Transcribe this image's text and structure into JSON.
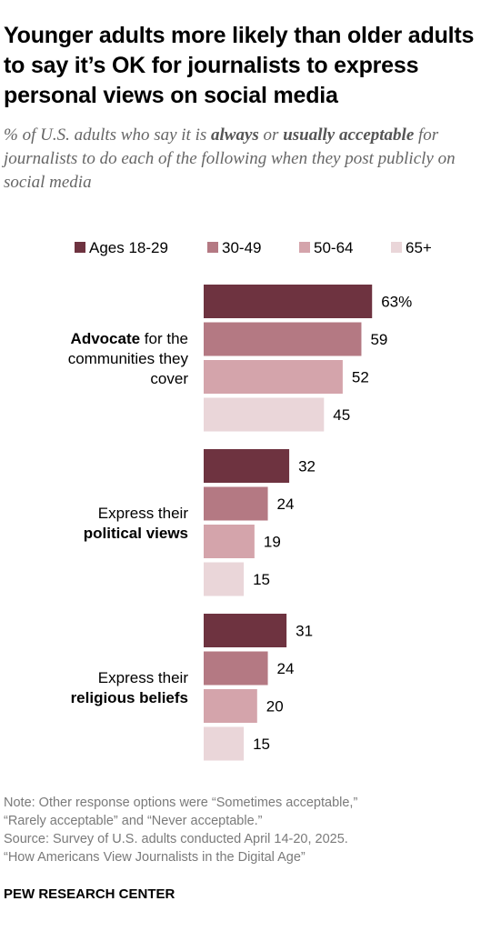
{
  "title": "Younger adults more likely than older adults to say it’s OK for journalists to express personal views on social media",
  "subtitle": {
    "part1": "% of U.S. adults who say it is ",
    "bold1": "always",
    "part2": " or ",
    "bold2": "usually acceptable",
    "part3": " for journalists to do each of the following when they post publicly on social media"
  },
  "notes": [
    "Note: Other response options were “Sometimes acceptable,”",
    "“Rarely acceptable” and “Never acceptable.”",
    "Source: Survey of U.S. adults conducted April 14-20, 2025.",
    "“How Americans View Journalists in the Digital Age”"
  ],
  "footer": "PEW RESEARCH CENTER",
  "chart_data": {
    "type": "bar",
    "orientation": "horizontal",
    "legend_position": "top",
    "xlim": [
      0,
      100
    ],
    "colors": [
      "#6e3340",
      "#b47983",
      "#d4a4ab",
      "#ead6d9"
    ],
    "series": [
      {
        "name": "Ages 18-29",
        "values": [
          63,
          32,
          31
        ]
      },
      {
        "name": "30-49",
        "values": [
          59,
          24,
          24
        ]
      },
      {
        "name": "50-64",
        "values": [
          52,
          19,
          20
        ]
      },
      {
        "name": "65+",
        "values": [
          45,
          15,
          15
        ]
      }
    ],
    "categories": [
      {
        "lines": [
          [
            {
              "text": "Advocate",
              "bold": true
            },
            {
              "text": " for the",
              "bold": false
            }
          ],
          [
            {
              "text": "communities they",
              "bold": false
            }
          ],
          [
            {
              "text": "cover",
              "bold": false
            }
          ]
        ]
      },
      {
        "lines": [
          [
            {
              "text": "Express their",
              "bold": false
            }
          ],
          [
            {
              "text": "political views",
              "bold": true
            }
          ]
        ]
      },
      {
        "lines": [
          [
            {
              "text": "Express their",
              "bold": false
            }
          ],
          [
            {
              "text": "religious beliefs",
              "bold": true
            }
          ]
        ]
      }
    ],
    "value_labels": [
      [
        "63%",
        "32",
        "31"
      ],
      [
        "59",
        "24",
        "24"
      ],
      [
        "52",
        "19",
        "20"
      ],
      [
        "45",
        "15",
        "15"
      ]
    ]
  }
}
